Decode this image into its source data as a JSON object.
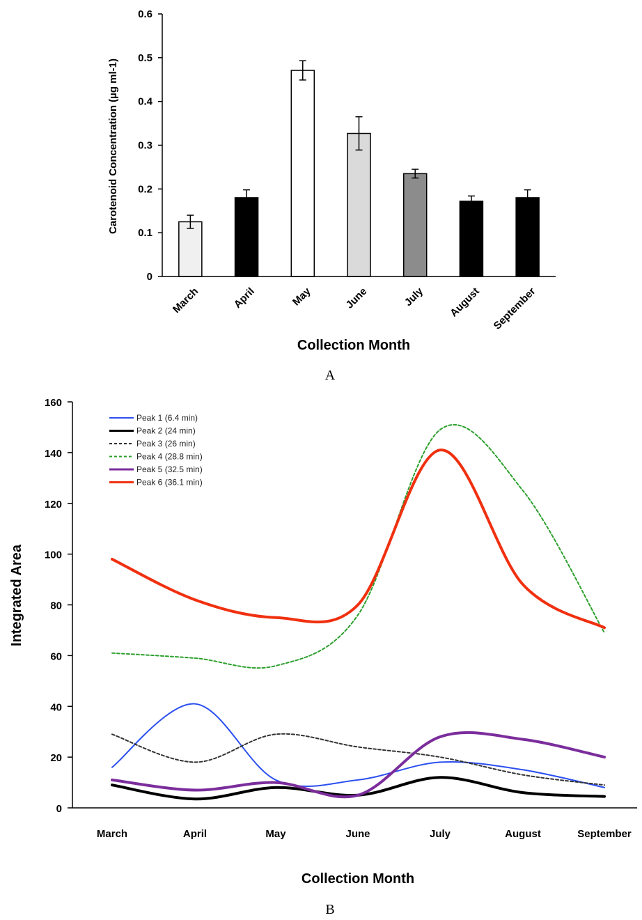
{
  "chart_data": [
    {
      "type": "bar",
      "panel_label": "A",
      "title": "",
      "xlabel": "Collection Month",
      "ylabel": "Carotenoid Concentration (µg ml-1)",
      "ylim": [
        0,
        0.6
      ],
      "yticks": [
        "0",
        "0.1",
        "0.2",
        "0.3",
        "0.4",
        "0.5",
        "0.6"
      ],
      "categories": [
        "March",
        "April",
        "May",
        "June",
        "July",
        "August",
        "September"
      ],
      "values": [
        0.125,
        0.18,
        0.471,
        0.327,
        0.235,
        0.172,
        0.18
      ],
      "errors": [
        0.015,
        0.018,
        0.022,
        0.038,
        0.01,
        0.012,
        0.018
      ],
      "bar_colors": [
        "#f0f0f0",
        "#000000",
        "#ffffff",
        "#dadada",
        "#8c8c8c",
        "#000000",
        "#000000"
      ],
      "grid": false
    },
    {
      "type": "line",
      "panel_label": "B",
      "title": "",
      "xlabel": "Collection Month",
      "ylabel": "Integrated Area",
      "ylim": [
        0,
        160
      ],
      "yticks": [
        "0",
        "20",
        "40",
        "60",
        "80",
        "100",
        "120",
        "140",
        "160"
      ],
      "categories": [
        "March",
        "April",
        "May",
        "June",
        "July",
        "August",
        "September"
      ],
      "legend_position": "top-left",
      "grid": false,
      "series": [
        {
          "name": "Peak 1 (6.4 min)",
          "color": "#2b4ff0",
          "dash": "solid",
          "width": 2,
          "values": [
            16,
            41,
            11,
            11,
            18,
            15,
            8
          ]
        },
        {
          "name": "Peak 2 (24 min)",
          "color": "#000000",
          "dash": "solid",
          "width": 4,
          "values": [
            9,
            3.5,
            8,
            5,
            12,
            6,
            4.5
          ]
        },
        {
          "name": "Peak 3 (26 min)",
          "color": "#333333",
          "dash": "dashed",
          "width": 2,
          "values": [
            29,
            18,
            29,
            24,
            20,
            13,
            9
          ]
        },
        {
          "name": "Peak 4 (28.8 min)",
          "color": "#2ca02c",
          "dash": "dashed",
          "width": 2,
          "values": [
            61,
            59,
            56,
            76,
            149,
            125,
            69
          ]
        },
        {
          "name": "Peak 5 (32.5 min)",
          "color": "#7b2d9c",
          "dash": "solid",
          "width": 4,
          "values": [
            11,
            7,
            10,
            5,
            28,
            27,
            20
          ]
        },
        {
          "name": "Peak 6 (36.1 min)",
          "color": "#f03010",
          "dash": "solid",
          "width": 4,
          "values": [
            98,
            82,
            75,
            80,
            141,
            88,
            71
          ]
        }
      ]
    }
  ]
}
